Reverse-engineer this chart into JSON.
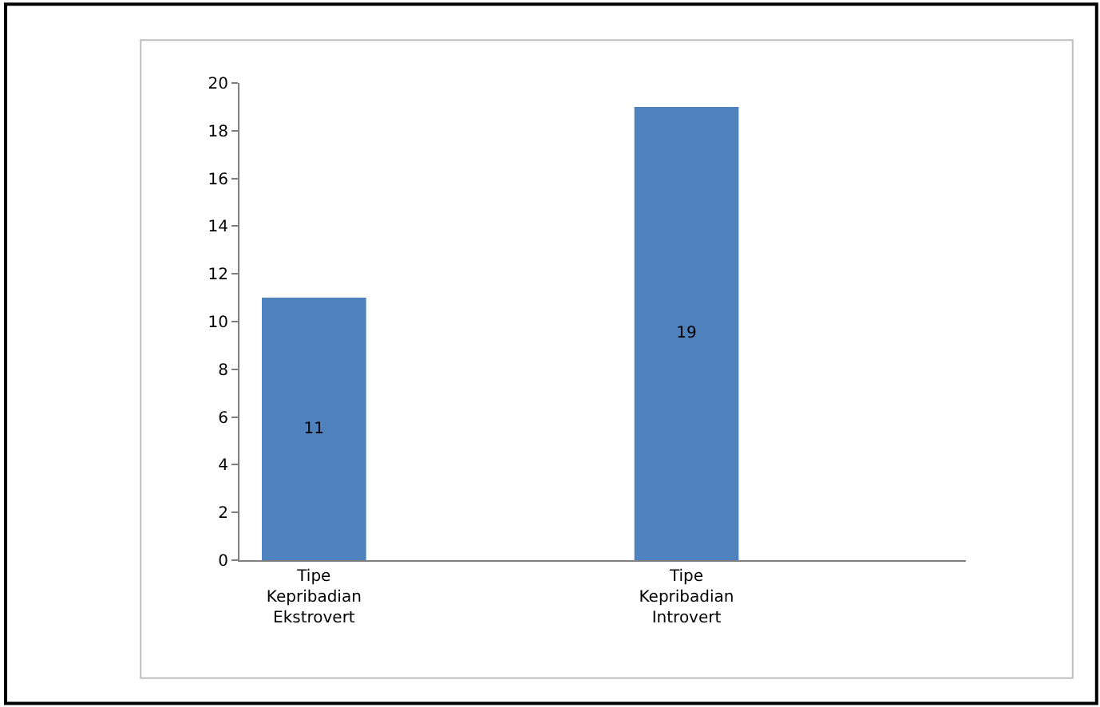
{
  "chart_data": {
    "type": "bar",
    "categories": [
      "Tipe\nKepribadian\nEkstrovert",
      "Tipe\nKepribadian\nIntrovert"
    ],
    "values": [
      11,
      19
    ],
    "color": "#4f81bd",
    "ylim": [
      0,
      20
    ],
    "yticks": [
      0,
      2,
      4,
      6,
      8,
      10,
      12,
      14,
      16,
      18,
      20
    ],
    "data_labels": true
  }
}
